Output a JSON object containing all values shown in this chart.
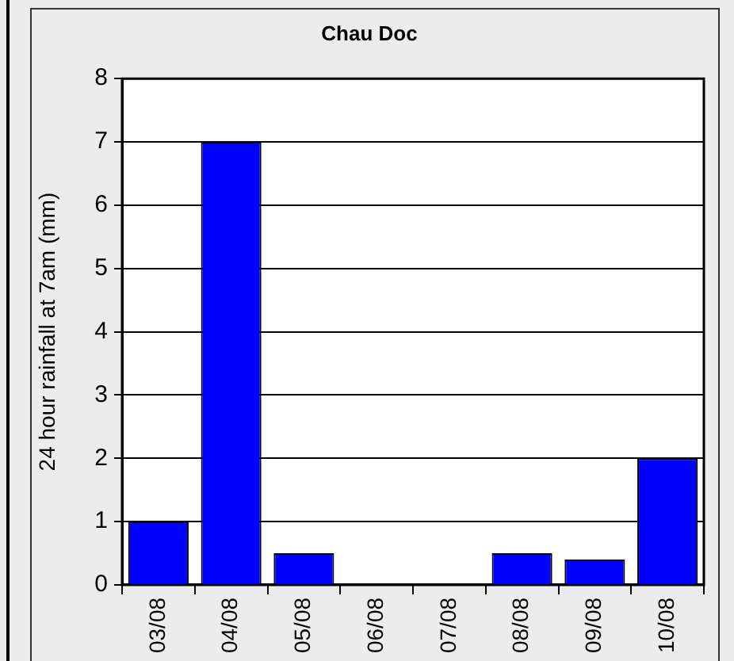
{
  "chart_data": {
    "type": "bar",
    "title": "Chau Doc",
    "ylabel": "24 hour rainfall at 7am (mm)",
    "categories": [
      "03/08",
      "04/08",
      "05/08",
      "06/08",
      "07/08",
      "08/08",
      "09/08",
      "10/08"
    ],
    "values": [
      1,
      7,
      0.5,
      0,
      0,
      0.5,
      0.4,
      2
    ],
    "color": "#0000ff",
    "ylim": [
      0,
      8
    ],
    "yticks": [
      0,
      1,
      2,
      3,
      4,
      5,
      6,
      7,
      8
    ],
    "grid": "y"
  }
}
